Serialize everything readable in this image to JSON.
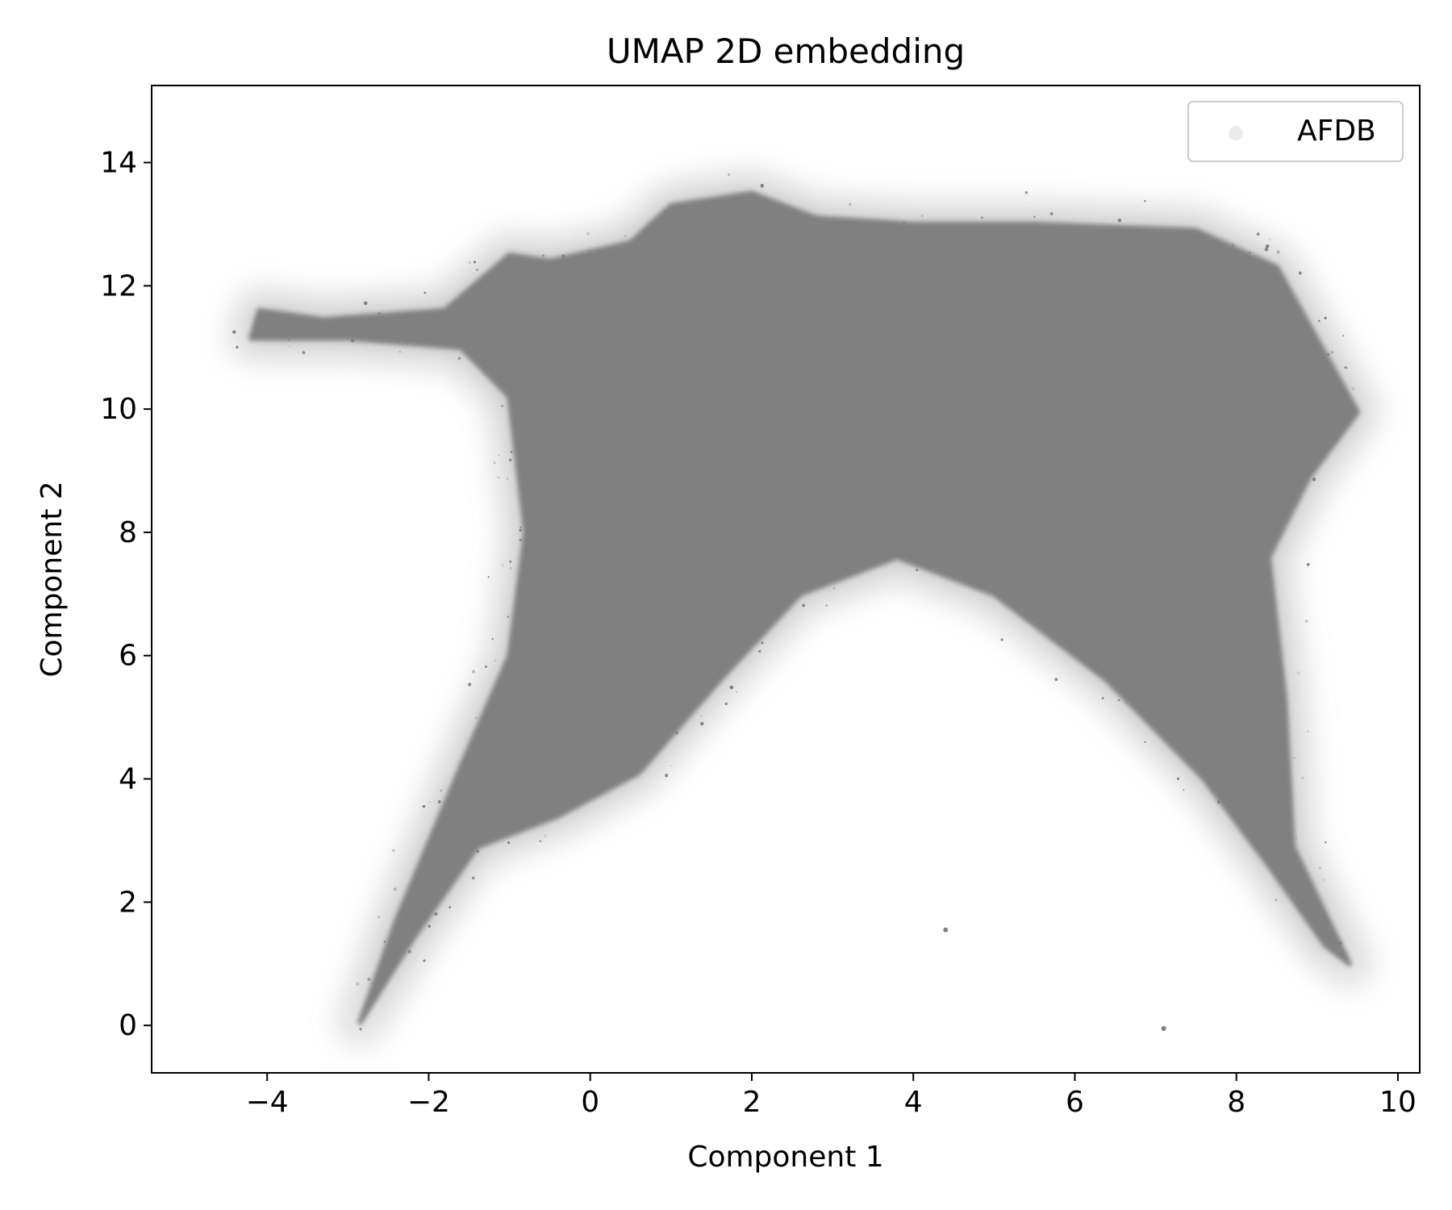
{
  "chart_data": {
    "type": "scatter",
    "title": "UMAP 2D embedding",
    "xlabel": "Component 1",
    "ylabel": "Component 2",
    "xlim": [
      -5.43,
      10.27
    ],
    "ylim": [
      -0.77,
      15.25
    ],
    "xticks": [
      -4,
      -2,
      0,
      2,
      4,
      6,
      8,
      10
    ],
    "yticks": [
      0,
      2,
      4,
      6,
      8,
      10,
      12,
      14
    ],
    "xtick_labels": [
      "−4",
      "−2",
      "0",
      "2",
      "4",
      "6",
      "8",
      "10"
    ],
    "ytick_labels": [
      "0",
      "2",
      "4",
      "6",
      "8",
      "10",
      "12",
      "14"
    ],
    "grid": false,
    "legend_position": "top-right",
    "series": [
      {
        "name": "AFDB",
        "color": "#808080",
        "approx_extent": {
          "x": [
            -4.7,
            9.5
          ],
          "y": [
            0.05,
            14.5
          ]
        },
        "dense_region_outline": [
          [
            -2.85,
            0.05
          ],
          [
            -2.2,
            1.4
          ],
          [
            -1.4,
            2.9
          ],
          [
            -0.4,
            3.4
          ],
          [
            0.6,
            4.1
          ],
          [
            1.6,
            5.6
          ],
          [
            2.6,
            7.0
          ],
          [
            3.8,
            7.6
          ],
          [
            5.0,
            7.0
          ],
          [
            6.4,
            5.6
          ],
          [
            7.6,
            4.0
          ],
          [
            8.4,
            2.6
          ],
          [
            9.1,
            1.3
          ],
          [
            9.4,
            1.0
          ],
          [
            8.7,
            2.9
          ],
          [
            8.6,
            5.3
          ],
          [
            8.4,
            7.6
          ],
          [
            8.9,
            8.9
          ],
          [
            9.5,
            9.95
          ],
          [
            8.5,
            12.3
          ],
          [
            7.5,
            12.9
          ],
          [
            5.5,
            13.0
          ],
          [
            4.0,
            13.0
          ],
          [
            2.8,
            13.1
          ],
          [
            2.0,
            13.5
          ],
          [
            1.0,
            13.3
          ],
          [
            0.5,
            12.7
          ],
          [
            -0.5,
            12.4
          ],
          [
            -1.0,
            12.5
          ],
          [
            -1.8,
            11.6
          ],
          [
            -3.3,
            11.45
          ],
          [
            -4.1,
            11.6
          ],
          [
            -4.2,
            11.15
          ],
          [
            -3.0,
            11.15
          ],
          [
            -1.6,
            11.0
          ],
          [
            -1.0,
            10.2
          ],
          [
            -0.8,
            8.0
          ],
          [
            -1.0,
            6.0
          ],
          [
            -1.6,
            4.2
          ],
          [
            -2.4,
            1.7
          ]
        ],
        "isolated_points": [
          [
            4.4,
            1.55
          ],
          [
            7.1,
            -0.05
          ]
        ]
      }
    ]
  }
}
